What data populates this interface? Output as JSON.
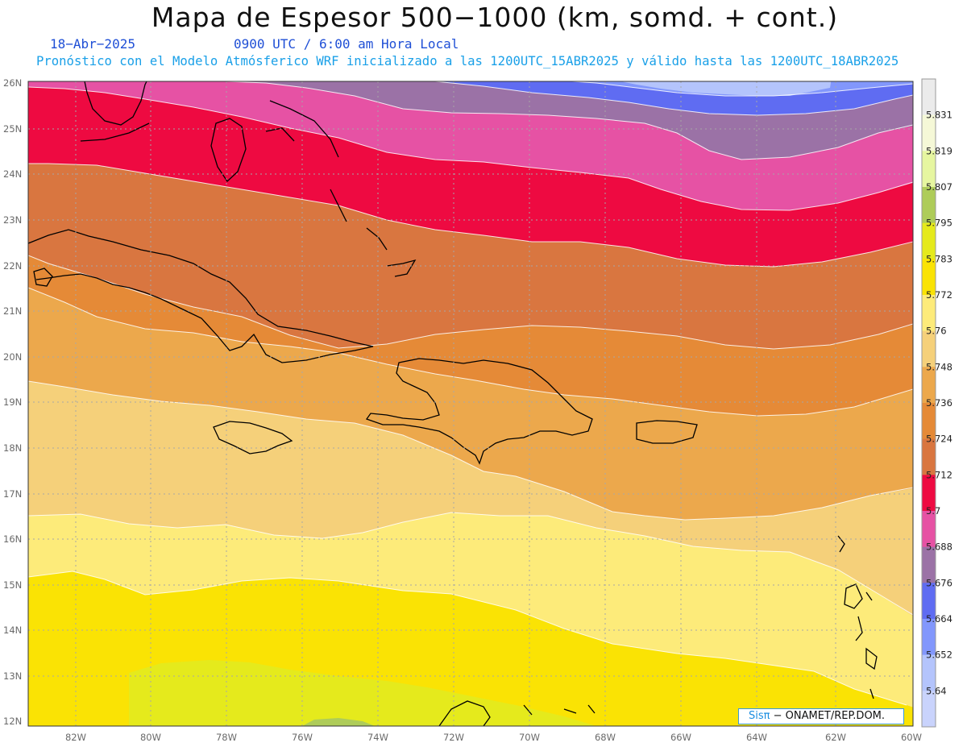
{
  "header": {
    "title": "Mapa de Espesor 500−1000 (km, somd. + cont.)",
    "date": "18−Abr−2025",
    "time": "0900 UTC / 6:00 am Hora Local",
    "description": "Pronóstico con el Modelo Atmósferico WRF inicializado a las 1200UTC_15ABR2025 y válido hasta las  1200UTC_18ABR2025"
  },
  "map": {
    "latitude_labels": [
      "26N",
      "25N",
      "24N",
      "23N",
      "22N",
      "21N",
      "20N",
      "19N",
      "18N",
      "17N",
      "16N",
      "15N",
      "14N",
      "13N",
      "12N"
    ],
    "longitude_labels": [
      "82W",
      "80W",
      "78W",
      "76W",
      "74W",
      "72W",
      "70W",
      "68W",
      "66W",
      "64W",
      "62W",
      "60W"
    ],
    "thickness_bands_km": [
      {
        "level": "5.772",
        "color": "#fae304"
      },
      {
        "level": "5.76",
        "color": "#fdeb7a"
      },
      {
        "level": "5.748",
        "color": "#f5d07a"
      },
      {
        "level": "5.736",
        "color": "#eca84c"
      },
      {
        "level": "5.724",
        "color": "#e58a37"
      },
      {
        "level": "5.712",
        "color": "#d97640"
      },
      {
        "level": "5.7",
        "color": "#ee0a41"
      },
      {
        "level": "5.688",
        "color": "#e652a4"
      },
      {
        "level": "5.676",
        "color": "#9b72a6"
      },
      {
        "level": "5.664",
        "color": "#5f6cf2"
      },
      {
        "level": "5.652",
        "color": "#8297fc"
      },
      {
        "level": "5.64",
        "color": "#b4c4fc"
      },
      {
        "level": "5.783",
        "color": "#e5ea1c"
      }
    ]
  },
  "colorbar": {
    "labels": [
      "5.831",
      "5.819",
      "5.807",
      "5.795",
      "5.783",
      "5.772",
      "5.76",
      "5.748",
      "5.736",
      "5.724",
      "5.712",
      "5.7",
      "5.688",
      "5.676",
      "5.664",
      "5.652",
      "5.64"
    ],
    "colors": [
      "#ebebeb",
      "#f5f8d7",
      "#e6f6a0",
      "#aecc59",
      "#e5ea1c",
      "#fae304",
      "#fdeb7a",
      "#f5d07a",
      "#eca84c",
      "#e58a37",
      "#d97640",
      "#ee0a41",
      "#e652a4",
      "#9b72a6",
      "#5f6cf2",
      "#8297fc",
      "#b4c4fc",
      "#c9d3fc"
    ]
  },
  "credit": {
    "brand": "Sisπ",
    "text": "− ONAMET/REP.DOM."
  }
}
